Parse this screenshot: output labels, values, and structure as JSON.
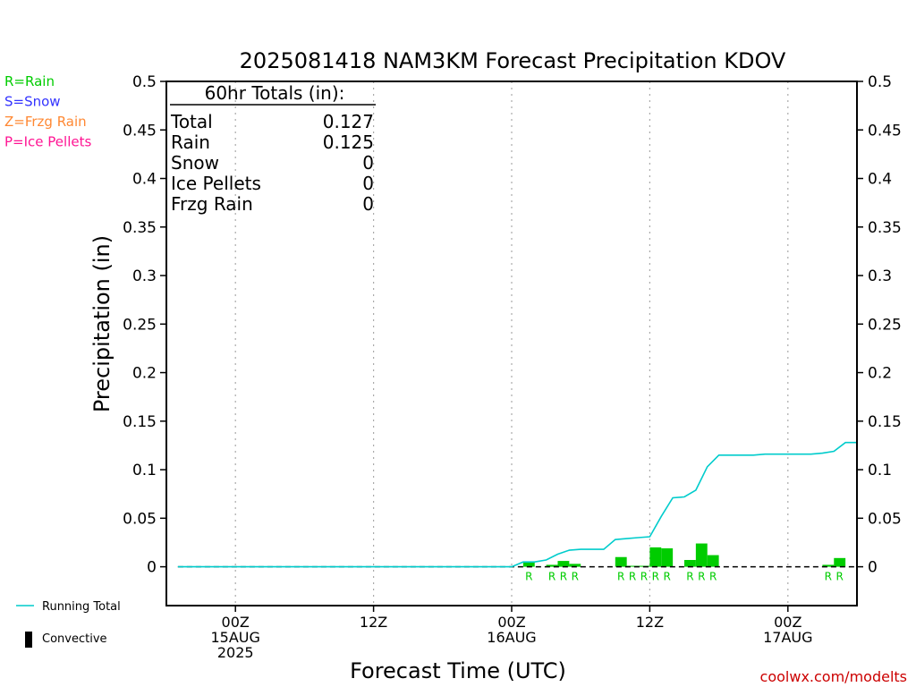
{
  "chart_data": {
    "type": "bar",
    "title": "2025081418 NAM3KM Forecast Precipitation KDOV",
    "ylabel": "Precipitation (in)",
    "xlabel": "Forecast Time (UTC)",
    "ylim": [
      -0.04,
      0.5
    ],
    "xlim_hours": [
      -6,
      54
    ],
    "y_ticks": [
      0,
      0.05,
      0.1,
      0.15,
      0.2,
      0.25,
      0.3,
      0.35,
      0.4,
      0.45,
      0.5
    ],
    "y_tick_labels": [
      "0",
      "0.05",
      "0.1",
      "0.15",
      "0.2",
      "0.25",
      "0.3",
      "0.35",
      "0.4",
      "0.45",
      "0.5"
    ],
    "x_ticks": [
      {
        "hour": 0,
        "lines": [
          "00Z",
          "15AUG",
          "2025"
        ]
      },
      {
        "hour": 12,
        "lines": [
          "12Z"
        ]
      },
      {
        "hour": 24,
        "lines": [
          "00Z",
          "16AUG"
        ]
      },
      {
        "hour": 36,
        "lines": [
          "12Z"
        ]
      },
      {
        "hour": 48,
        "lines": [
          "00Z",
          "17AUG"
        ]
      }
    ],
    "grid": "vertical dotted at x ticks",
    "precip_bars": [
      {
        "hour": 26,
        "value": 0.005,
        "type": "R"
      },
      {
        "hour": 28,
        "value": 0.002,
        "type": "R"
      },
      {
        "hour": 29,
        "value": 0.006,
        "type": "R"
      },
      {
        "hour": 30,
        "value": 0.003,
        "type": "R"
      },
      {
        "hour": 34,
        "value": 0.01,
        "type": "R"
      },
      {
        "hour": 35,
        "value": 0.001,
        "type": "R"
      },
      {
        "hour": 36,
        "value": 0.001,
        "type": "R"
      },
      {
        "hour": 37,
        "value": 0.02,
        "type": "R"
      },
      {
        "hour": 38,
        "value": 0.019,
        "type": "R"
      },
      {
        "hour": 40,
        "value": 0.007,
        "type": "R"
      },
      {
        "hour": 41,
        "value": 0.024,
        "type": "R"
      },
      {
        "hour": 42,
        "value": 0.012,
        "type": "R"
      },
      {
        "hour": 52,
        "value": 0.002,
        "type": "R"
      },
      {
        "hour": 53,
        "value": 0.009,
        "type": "R"
      }
    ],
    "running_total": {
      "name": "Running Total",
      "points": [
        [
          -5,
          0
        ],
        [
          24,
          0
        ],
        [
          25,
          0.005
        ],
        [
          26,
          0.005
        ],
        [
          27,
          0.007
        ],
        [
          28,
          0.013
        ],
        [
          29,
          0.017
        ],
        [
          30,
          0.018
        ],
        [
          31,
          0.018
        ],
        [
          32,
          0.018
        ],
        [
          33,
          0.028
        ],
        [
          34,
          0.029
        ],
        [
          35,
          0.03
        ],
        [
          36,
          0.031
        ],
        [
          37,
          0.052
        ],
        [
          38,
          0.071
        ],
        [
          39,
          0.072
        ],
        [
          40,
          0.079
        ],
        [
          41,
          0.103
        ],
        [
          42,
          0.115
        ],
        [
          43,
          0.115
        ],
        [
          44,
          0.115
        ],
        [
          45,
          0.115
        ],
        [
          46,
          0.116
        ],
        [
          47,
          0.116
        ],
        [
          48,
          0.116
        ],
        [
          49,
          0.116
        ],
        [
          50,
          0.116
        ],
        [
          51,
          0.117
        ],
        [
          52,
          0.119
        ],
        [
          53,
          0.128
        ],
        [
          54,
          0.128
        ]
      ]
    },
    "totals_box": {
      "header": "60hr Totals (in):",
      "rows": [
        {
          "label": "Total",
          "value": "0.127"
        },
        {
          "label": "Rain",
          "value": "0.125"
        },
        {
          "label": "Snow",
          "value": "0"
        },
        {
          "label": "Ice Pellets",
          "value": "0"
        },
        {
          "label": "Frzg Rain",
          "value": "0"
        }
      ]
    },
    "legend_top": [
      {
        "text": "R=Rain",
        "color": "#00cc00"
      },
      {
        "text": "S=Snow",
        "color": "#3333ff"
      },
      {
        "text": "Z=Frzg Rain",
        "color": "#ff8833"
      },
      {
        "text": "P=Ice Pellets",
        "color": "#ff1493"
      }
    ],
    "legend_bottom": [
      {
        "text": "Running Total",
        "kind": "line",
        "color": "#00cccc"
      },
      {
        "text": "Convective",
        "kind": "bar",
        "color": "#000000"
      }
    ],
    "colors": {
      "rain_bar": "#00cc00",
      "rain_label": "#00cc00",
      "running_total": "#00cccc",
      "zero_line": "#000000",
      "grid": "#aaaaaa"
    },
    "watermark": "coolwx.com/modelts",
    "watermark_color": "#cc0000"
  }
}
